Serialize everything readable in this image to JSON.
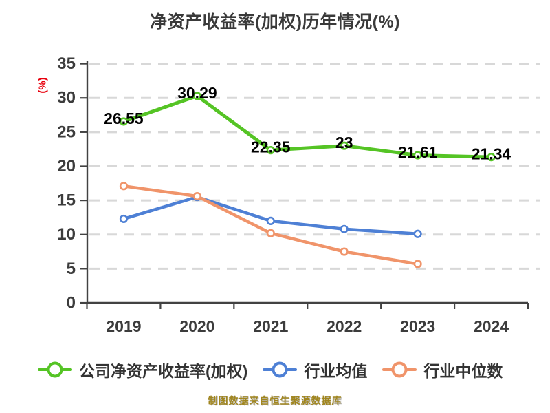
{
  "title": "净资产收益率(加权)历年情况(%)",
  "footer": "制图数据来自恒生聚源数据库",
  "y_axis_unit_label": "(%)",
  "colors": {
    "title_text": "#3a3a3a",
    "axis": "#424242",
    "tick_label": "#3c3c3c",
    "gridline": "#d8d8d8",
    "y_unit_label": "#e8000d",
    "data_label": "#000000",
    "footer_text": "#a1861e",
    "series_company": "#55c425",
    "series_mean": "#4e80d5",
    "series_median": "#f0946a"
  },
  "chart_data": {
    "type": "line",
    "title": "净资产收益率(加权)历年情况(%)",
    "categories": [
      "2019",
      "2020",
      "2021",
      "2022",
      "2023",
      "2024"
    ],
    "series": [
      {
        "key": "company-roe",
        "name": "公司净资产收益率(加权)",
        "color": "#55c425",
        "values": [
          26.55,
          30.29,
          22.35,
          23,
          21.61,
          21.34
        ],
        "point_labels": [
          "26.55",
          "30.29",
          "22.35",
          "23",
          "21.61",
          "21.34"
        ]
      },
      {
        "key": "industry-mean",
        "name": "行业均值",
        "color": "#4e80d5",
        "values": [
          12.3,
          15.5,
          12.0,
          10.8,
          10.1,
          null
        ],
        "point_labels": null
      },
      {
        "key": "industry-median",
        "name": "行业中位数",
        "color": "#f0946a",
        "values": [
          17.1,
          15.6,
          10.2,
          7.5,
          5.7,
          null
        ],
        "point_labels": null
      }
    ],
    "xlabel": "",
    "ylabel": "(%)",
    "ylim": [
      0,
      35
    ],
    "yticks": [
      0,
      5,
      10,
      15,
      20,
      25,
      30,
      35
    ],
    "grid": "horizontal-dashed",
    "legend_position": "bottom",
    "marker": "circle-white-fill"
  }
}
